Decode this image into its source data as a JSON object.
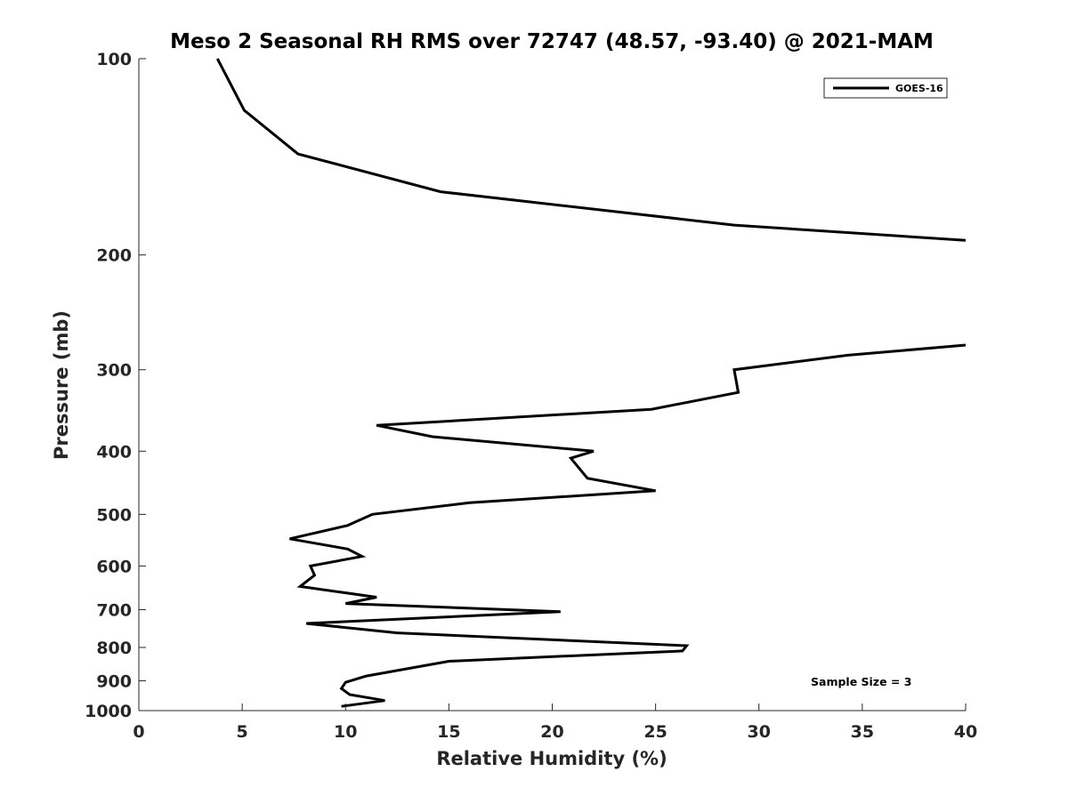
{
  "chart_data": {
    "type": "line",
    "title": "Meso 2 Seasonal RH RMS over 72747 (48.57, -93.40) @ 2021-MAM",
    "xlabel": "Relative Humidity (%)",
    "ylabel": "Pressure (mb)",
    "xlim": [
      0,
      40
    ],
    "ylim": [
      100,
      1000
    ],
    "y_scale": "log",
    "y_reversed": true,
    "xticks": [
      0,
      5,
      10,
      15,
      20,
      25,
      30,
      35,
      40
    ],
    "yticks": [
      100,
      200,
      300,
      400,
      500,
      600,
      700,
      800,
      900,
      1000
    ],
    "grid": false,
    "legend_position": "top-right",
    "annotation": "Sample Size = 3",
    "line_color": "#000000",
    "series": [
      {
        "name": "GOES-16",
        "segments": [
          {
            "x": [
              3.8,
              5.1,
              7.7,
              14.6,
              28.8,
              40
            ],
            "y": [
              100,
              120,
              140,
              160,
              180,
              190
            ]
          },
          {
            "x": [
              40,
              34.3,
              28.8,
              29.0,
              24.8,
              11.5,
              14.2,
              22.0,
              20.9,
              21.7,
              25.0,
              16.0,
              11.3,
              10.1,
              7.3,
              10.1,
              10.8,
              8.3,
              8.5,
              7.8,
              11.5,
              10.0,
              20.4,
              8.1,
              12.5,
              26.5,
              26.3,
              15.0,
              11.0,
              10.0,
              9.8,
              10.2,
              11.9,
              9.8
            ],
            "y": [
              275,
              285,
              300,
              325,
              345,
              365,
              380,
              400,
              410,
              440,
              460,
              480,
              500,
              520,
              545,
              565,
              580,
              600,
              620,
              645,
              670,
              685,
              705,
              735,
              760,
              795,
              810,
              840,
              885,
              905,
              925,
              945,
              965,
              985
            ]
          }
        ]
      }
    ]
  }
}
